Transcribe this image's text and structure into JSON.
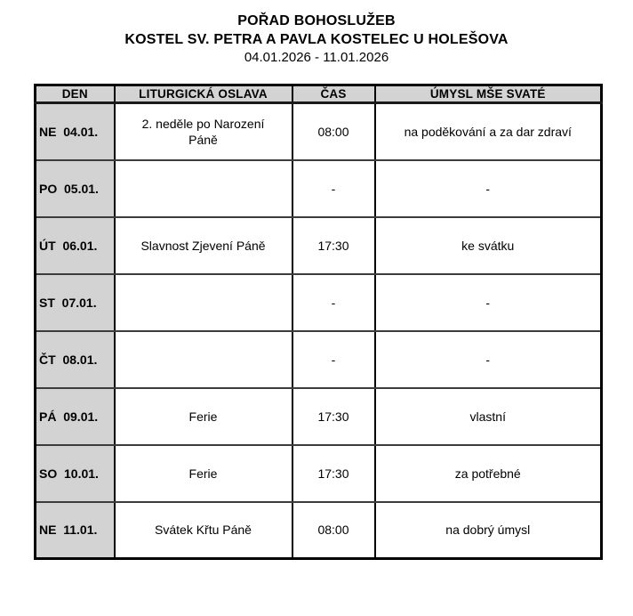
{
  "page": {
    "title": "POŘAD BOHOSLUŽEB",
    "subtitle": "KOSTEL SV. PETRA A PAVLA KOSTELEC U HOLEŠOVA",
    "date_range": "04.01.2026 - 11.01.2026"
  },
  "table": {
    "columns": [
      "DEN",
      "LITURGICKÁ OSLAVA",
      "ČAS",
      "ÚMYSL MŠE SVATÉ"
    ],
    "rows": [
      {
        "day": "NE  04.01.",
        "celebration": "2. neděle po Narození Páně",
        "time": "08:00",
        "intention": "na poděkování a za dar zdraví"
      },
      {
        "day": "PO  05.01.",
        "celebration": "",
        "time": "-",
        "intention": "-"
      },
      {
        "day": "ÚT  06.01.",
        "celebration": "Slavnost Zjevení Páně",
        "time": "17:30",
        "intention": "ke svátku"
      },
      {
        "day": "ST  07.01.",
        "celebration": "",
        "time": "-",
        "intention": "-"
      },
      {
        "day": "ČT  08.01.",
        "celebration": "",
        "time": "-",
        "intention": "-"
      },
      {
        "day": "PÁ  09.01.",
        "celebration": "Ferie",
        "time": "17:30",
        "intention": "vlastní"
      },
      {
        "day": "SO  10.01.",
        "celebration": "Ferie",
        "time": "17:30",
        "intention": "za potřebné"
      },
      {
        "day": "NE  11.01.",
        "celebration": "Svátek Křtu Páně",
        "time": "08:00",
        "intention": "na dobrý úmysl"
      }
    ]
  },
  "colors": {
    "header_bg": "#d3d3d3",
    "outer_border": "#000000",
    "row_divider": "#3c3c3c"
  }
}
